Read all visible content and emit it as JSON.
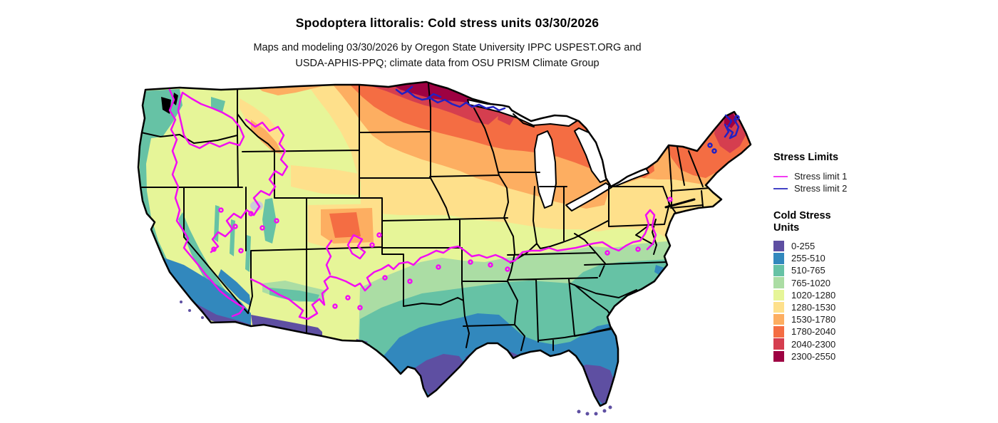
{
  "header": {
    "title": "Spodoptera littoralis: Cold stress units 03/30/2026",
    "subtitle_line1": "Maps and modeling 03/30/2026 by Oregon State University IPPC USPEST.ORG and",
    "subtitle_line2": "USDA-APHIS-PPQ; climate data from OSU PRISM Climate Group"
  },
  "legend": {
    "stress_limits": {
      "heading": "Stress Limits",
      "items": [
        {
          "label": "Stress limit 1",
          "color": "#f23cf2"
        },
        {
          "label": "Stress limit 2",
          "color": "#4343c6"
        }
      ]
    },
    "cold_stress": {
      "heading": "Cold Stress Units",
      "classes": [
        {
          "label": "0-255",
          "color": "#5e4fa2"
        },
        {
          "label": "255-510",
          "color": "#3288bd"
        },
        {
          "label": "510-765",
          "color": "#66c2a5"
        },
        {
          "label": "765-1020",
          "color": "#abdda4"
        },
        {
          "label": "1020-1280",
          "color": "#e6f598"
        },
        {
          "label": "1280-1530",
          "color": "#fee08b"
        },
        {
          "label": "1530-1780",
          "color": "#fdae61"
        },
        {
          "label": "1780-2040",
          "color": "#f46d43"
        },
        {
          "label": "2040-2300",
          "color": "#d53e4f"
        },
        {
          "label": "2300-2550",
          "color": "#9e0142"
        }
      ]
    }
  },
  "map": {
    "description": "Contiguous United States raster map of cold stress units with state borders",
    "contour1_color": "#f20df2",
    "contour2_color": "#2121c4",
    "border_color": "#000000",
    "water_color": "#ffffff"
  }
}
